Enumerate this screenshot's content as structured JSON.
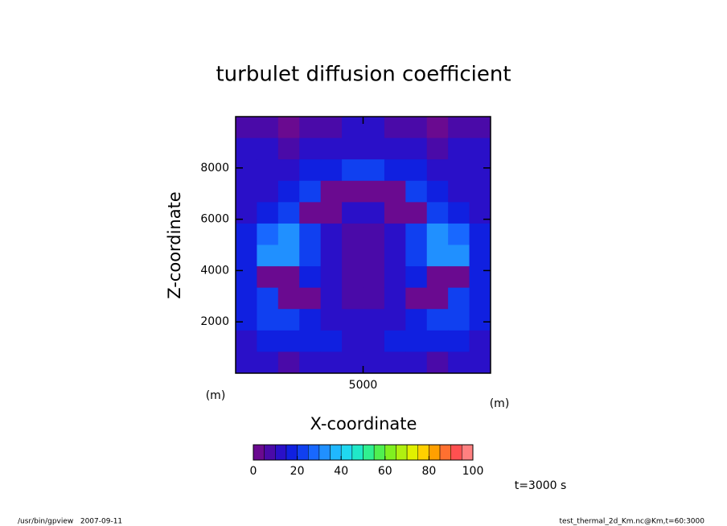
{
  "chart_data": {
    "type": "heatmap",
    "title": "turbulet diffusion coefficient",
    "xlabel": "X-coordinate",
    "ylabel": "Z-coordinate",
    "xunit": "(m)",
    "yunit": "(m)",
    "xlim": [
      0,
      10000
    ],
    "ylim": [
      0,
      10000
    ],
    "xticks": [
      5000
    ],
    "yticks": [
      2000,
      4000,
      6000,
      8000
    ],
    "values": [
      [
        8,
        6,
        4,
        6,
        8,
        10,
        10,
        8,
        6,
        4,
        6,
        8
      ],
      [
        10,
        10,
        8,
        10,
        12,
        12,
        12,
        12,
        10,
        8,
        10,
        10
      ],
      [
        12,
        12,
        14,
        16,
        18,
        20,
        20,
        18,
        16,
        14,
        12,
        12
      ],
      [
        12,
        14,
        18,
        22,
        2,
        2,
        2,
        2,
        22,
        18,
        14,
        12
      ],
      [
        14,
        18,
        22,
        2,
        2,
        10,
        10,
        2,
        2,
        22,
        18,
        14
      ],
      [
        16,
        26,
        30,
        24,
        14,
        8,
        8,
        14,
        24,
        30,
        26,
        16
      ],
      [
        18,
        34,
        30,
        24,
        14,
        6,
        6,
        14,
        24,
        30,
        34,
        18
      ],
      [
        16,
        2,
        2,
        18,
        12,
        6,
        6,
        12,
        18,
        2,
        2,
        16
      ],
      [
        16,
        20,
        2,
        2,
        12,
        8,
        8,
        12,
        2,
        2,
        20,
        16
      ],
      [
        16,
        20,
        22,
        18,
        14,
        10,
        10,
        14,
        18,
        22,
        20,
        16
      ],
      [
        14,
        16,
        18,
        18,
        16,
        12,
        12,
        16,
        18,
        18,
        16,
        14
      ],
      [
        12,
        10,
        8,
        10,
        12,
        14,
        14,
        12,
        10,
        8,
        10,
        12
      ]
    ],
    "colorbar_lim": [
      0,
      100
    ],
    "colorbar_ticks": [
      0,
      20,
      40,
      60,
      80,
      100
    ],
    "colormap": [
      "#6a0a90",
      "#4a0aa8",
      "#2a10c8",
      "#1020e0",
      "#1040f0",
      "#1868ff",
      "#2090ff",
      "#20b8ff",
      "#20d8f0",
      "#20e8c8",
      "#30f090",
      "#50f050",
      "#80f020",
      "#b0f010",
      "#e0f000",
      "#ffd000",
      "#ffa000",
      "#ff7030",
      "#ff5050",
      "#ff8080"
    ],
    "time_label": "t=3000 s",
    "footer_left": "/usr/bin/gpview   2007-09-11",
    "footer_right": "test_thermal_2d_Km.nc@Km,t=60:3000"
  }
}
